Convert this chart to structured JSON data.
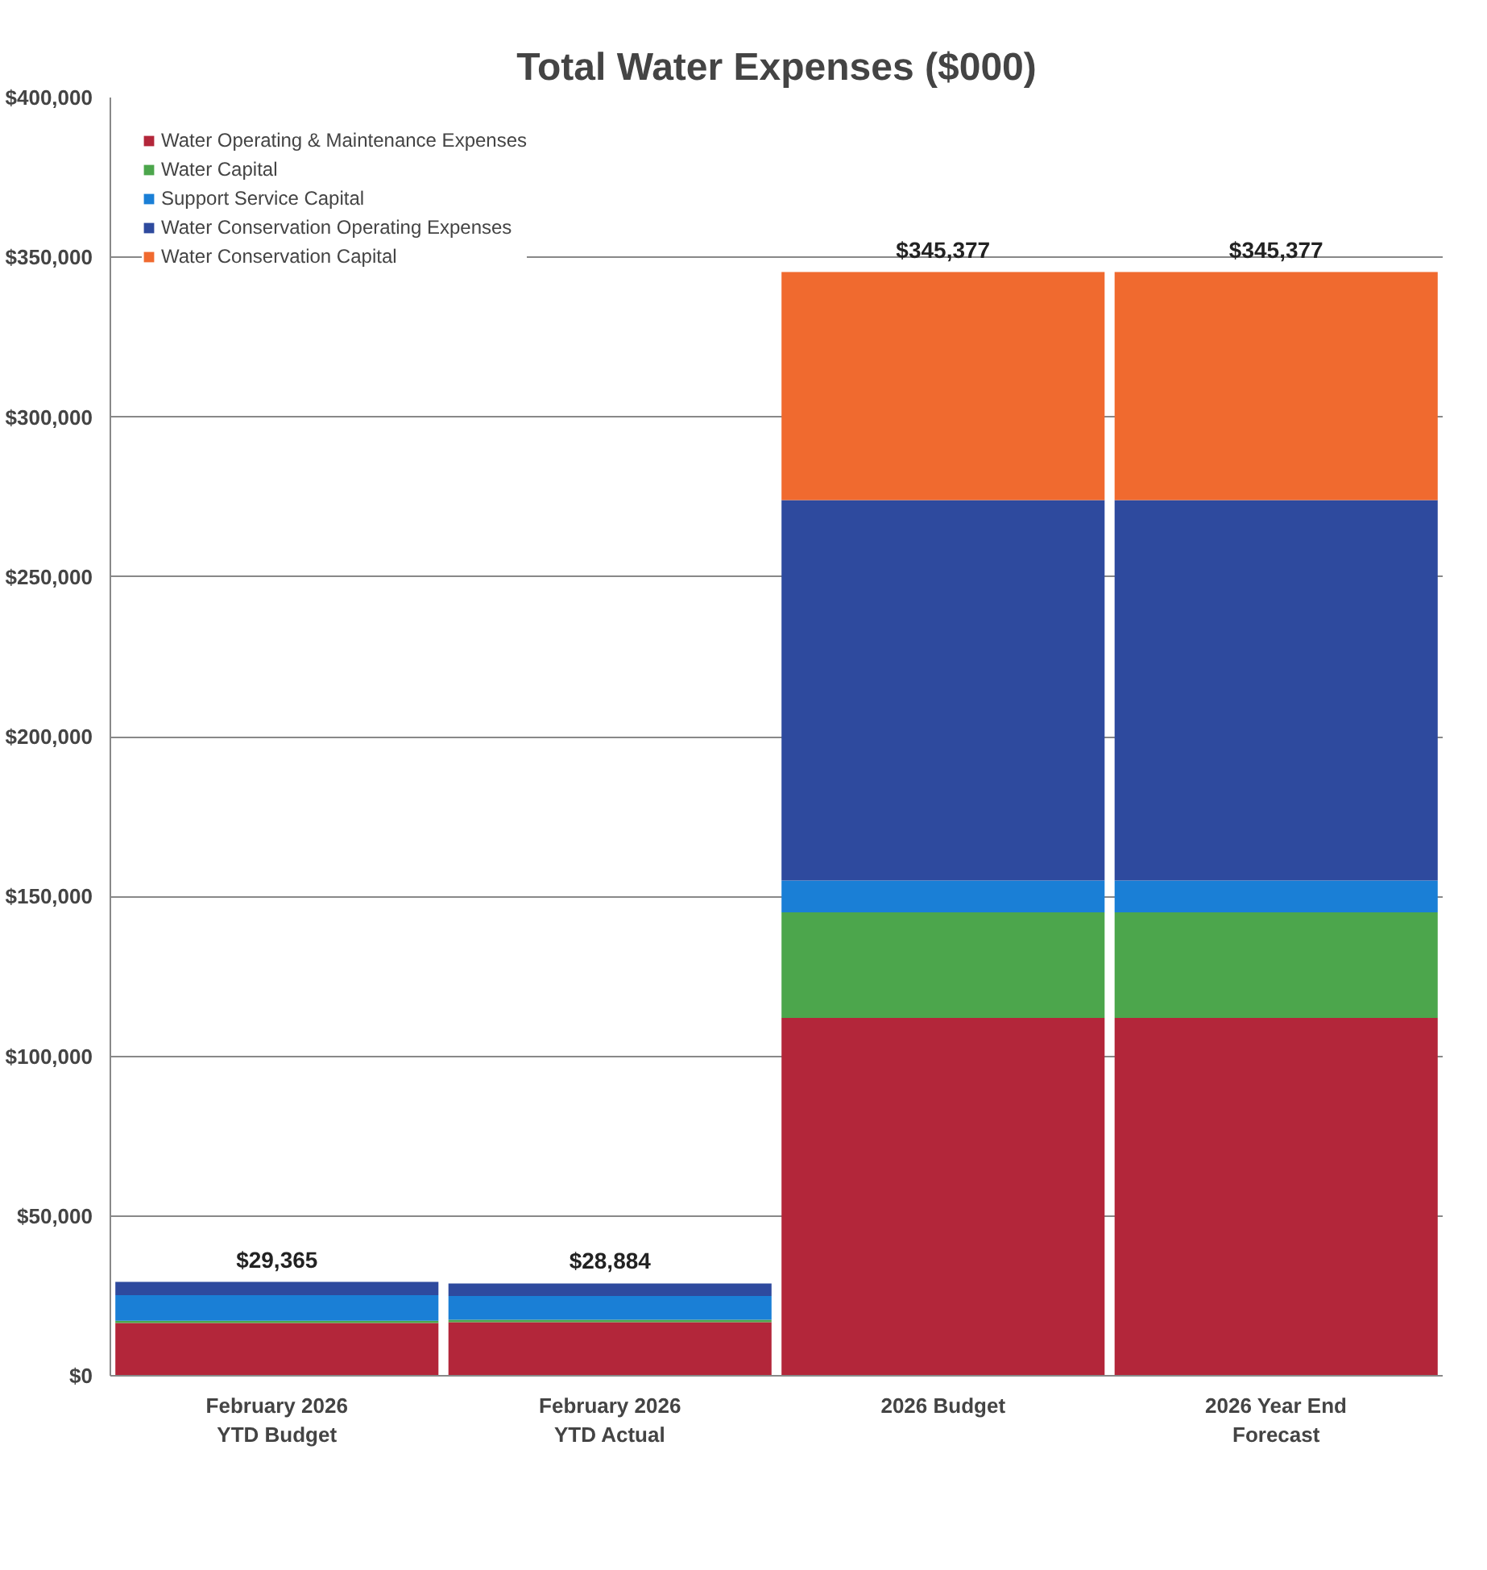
{
  "chart_data": {
    "type": "bar",
    "title": "Total Water Expenses ($000)",
    "stacked": true,
    "categories": [
      "February 2026\nYTD Budget",
      "February 2026\nYTD Actual",
      "2026 Budget",
      "2026 Year End\nForecast"
    ],
    "series": [
      {
        "name": "Water Operating & Maintenance Expenses",
        "color": "#b3263a",
        "values": [
          16500,
          16800,
          112000,
          112000
        ]
      },
      {
        "name": "Water Capital",
        "color": "#4ca64c",
        "values": [
          700,
          700,
          33000,
          33000
        ]
      },
      {
        "name": "Support Service Capital",
        "color": "#1a7fd6",
        "values": [
          8000,
          7500,
          10000,
          10000
        ]
      },
      {
        "name": "Water Conservation Operating Expenses",
        "color": "#2e4a9e",
        "values": [
          4165,
          3884,
          119000,
          119000
        ]
      },
      {
        "name": "Water Conservation Capital",
        "color": "#f06a2f",
        "values": [
          0,
          0,
          71377,
          71377
        ]
      }
    ],
    "totals": [
      "$29,365",
      "$28,884",
      "$345,377",
      "$345,377"
    ],
    "ylim": [
      0,
      400000
    ],
    "yticks": [
      {
        "value": 0,
        "label": "$0"
      },
      {
        "value": 50000,
        "label": "$50,000"
      },
      {
        "value": 100000,
        "label": "$100,000"
      },
      {
        "value": 150000,
        "label": "$150,000"
      },
      {
        "value": 200000,
        "label": "$200,000"
      },
      {
        "value": 250000,
        "label": "$250,000"
      },
      {
        "value": 300000,
        "label": "$300,000"
      },
      {
        "value": 350000,
        "label": "$350,000"
      },
      {
        "value": 400000,
        "label": "$400,000"
      }
    ],
    "grid": "y",
    "legend": "top left"
  }
}
